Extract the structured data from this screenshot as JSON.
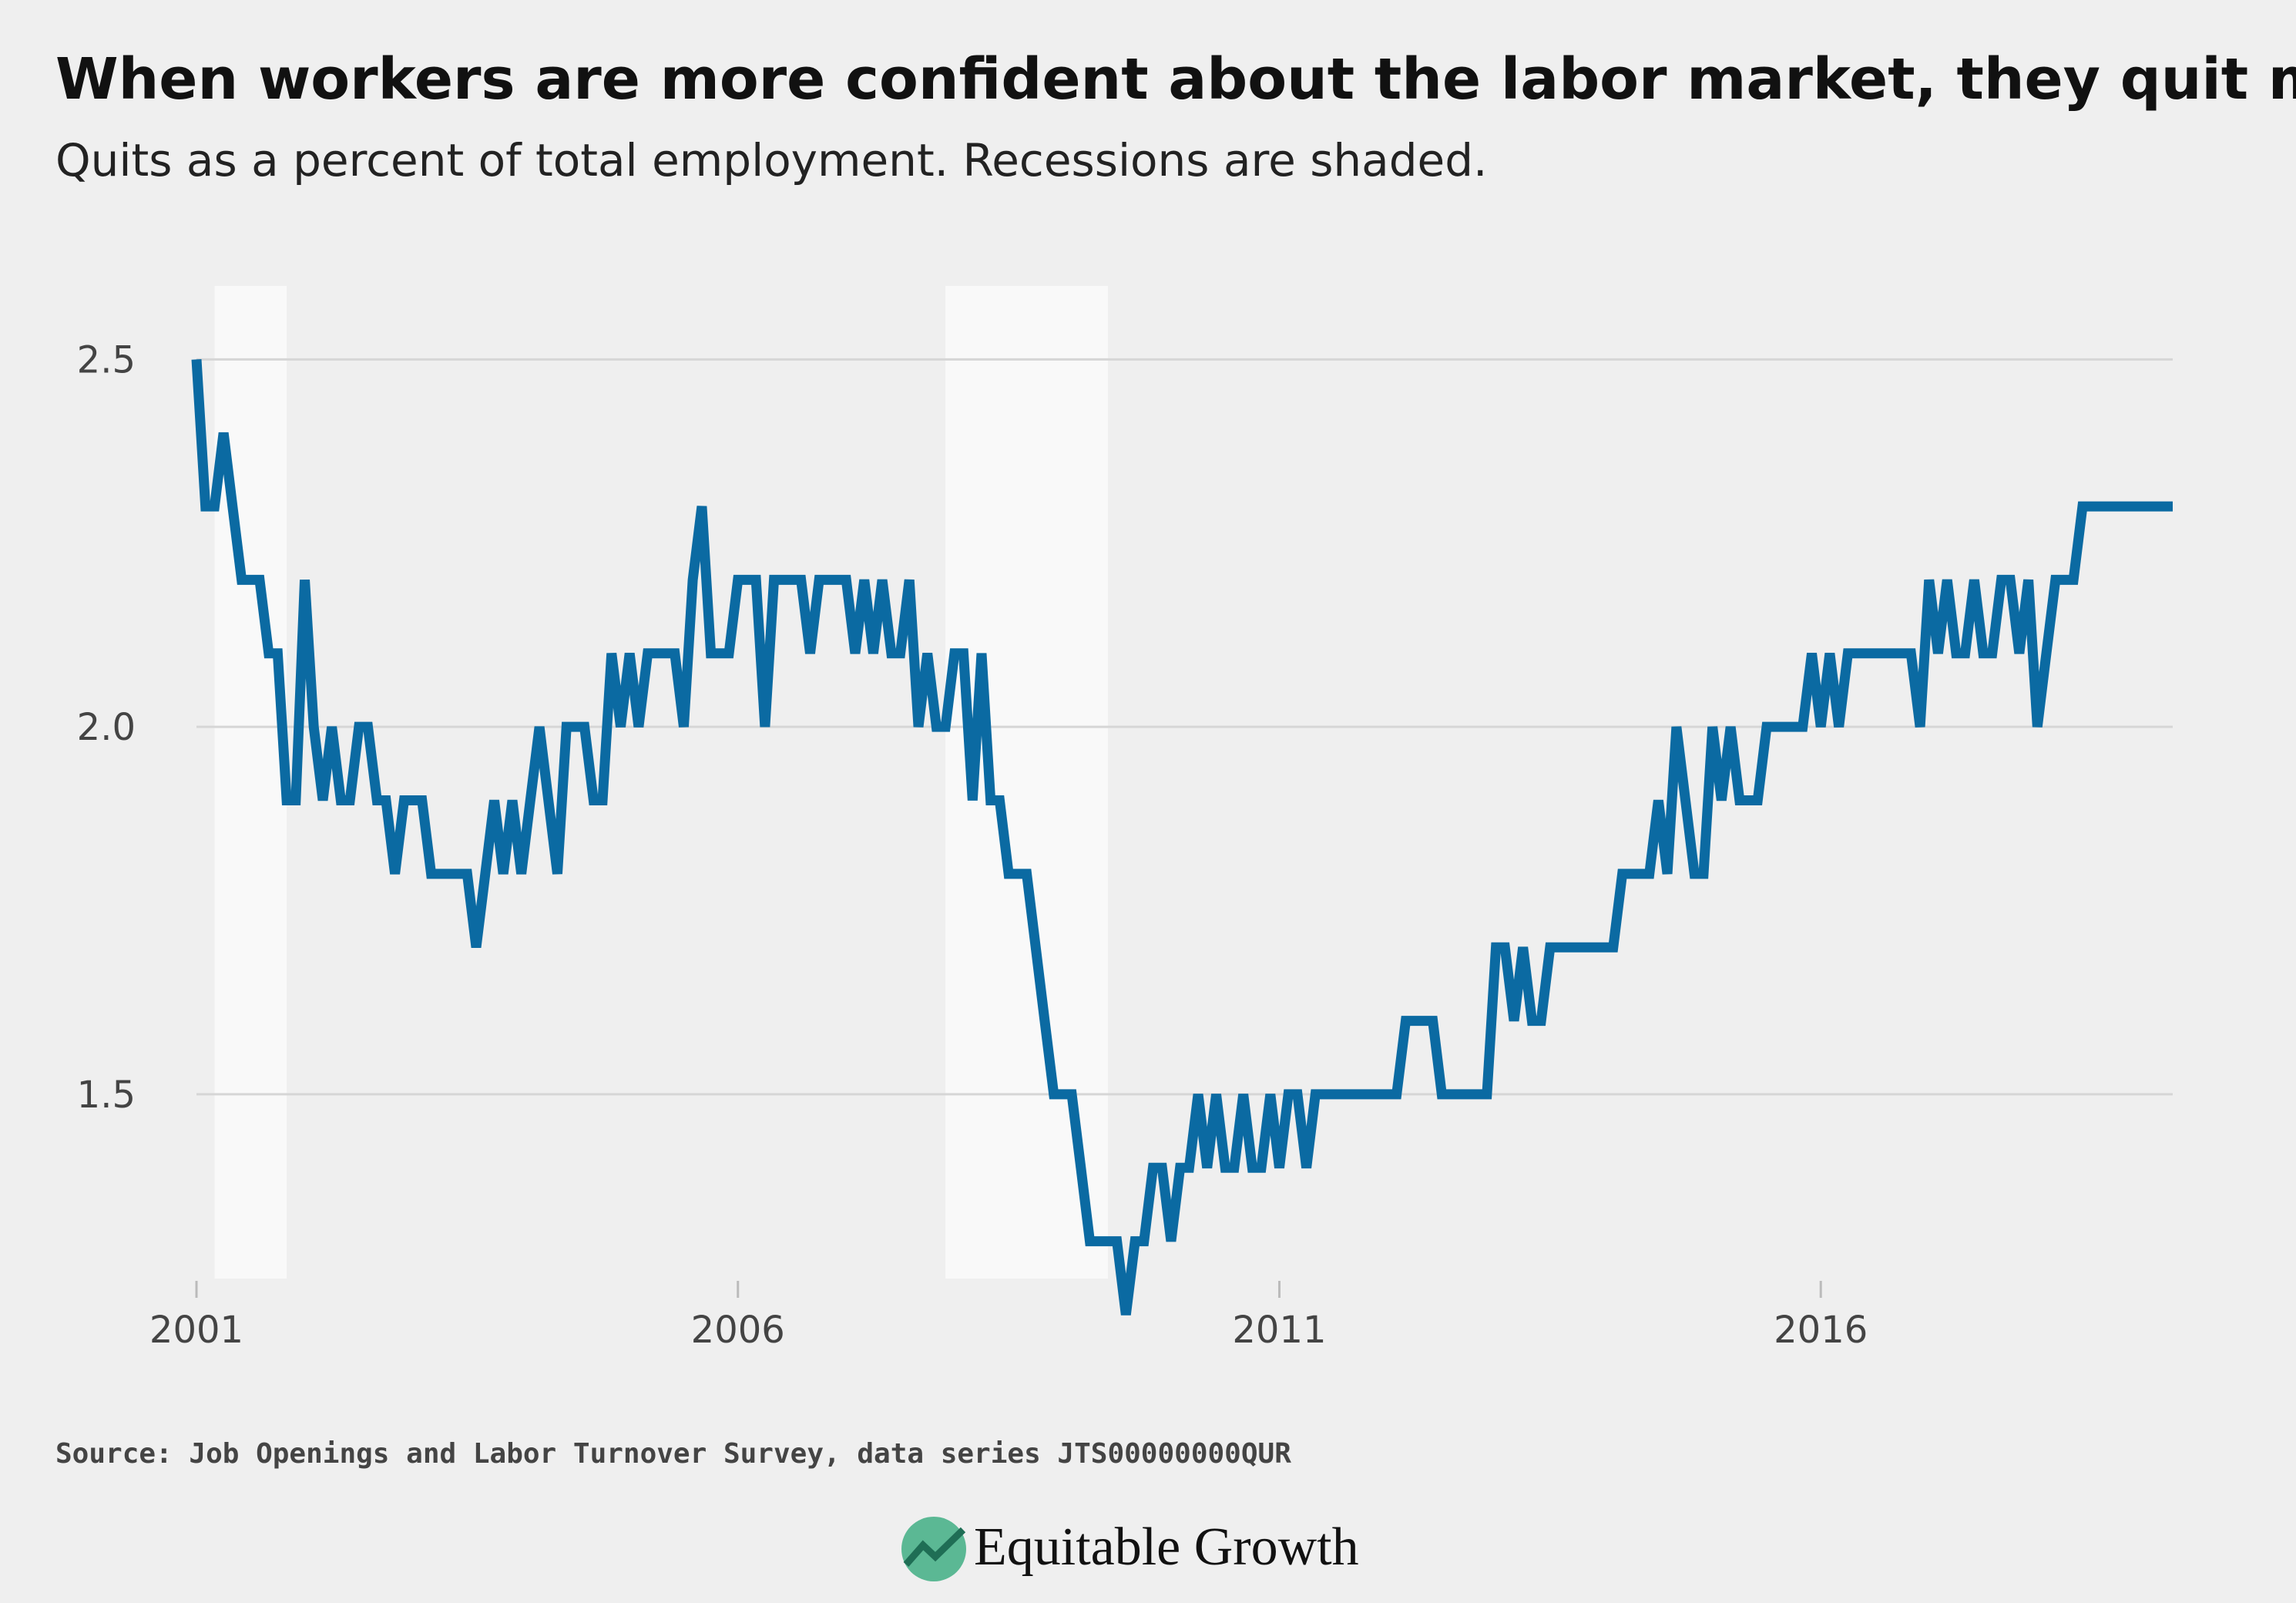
{
  "chart_data": {
    "type": "line",
    "title": "When workers are more confident about the labor market, they quit more",
    "subtitle": "Quits as a percent of total employment. Recessions are shaded.",
    "source": "Source: Job Openings and Labor Turnover Survey, data series JTS00000000QUR",
    "brand": "Equitable Growth",
    "color": "#0b6aa2",
    "grid": true,
    "xlim": [
      2001,
      2019.25
    ],
    "ylim": [
      1.2,
      2.6
    ],
    "xticks": [
      2001,
      2006,
      2011,
      2016
    ],
    "yticks": [
      1.5,
      {
        "value": 2.0,
        "label": "2.0"
      },
      2.5
    ],
    "recessions": [
      [
        2001.167,
        2001.833
      ],
      [
        2007.917,
        2009.417
      ]
    ],
    "x": [
      2001.0,
      2001.083,
      2001.167,
      2001.25,
      2001.333,
      2001.417,
      2001.5,
      2001.583,
      2001.667,
      2001.75,
      2001.833,
      2001.917,
      2002.0,
      2002.083,
      2002.167,
      2002.25,
      2002.333,
      2002.417,
      2002.5,
      2002.583,
      2002.667,
      2002.75,
      2002.833,
      2002.917,
      2003.0,
      2003.083,
      2003.167,
      2003.25,
      2003.333,
      2003.417,
      2003.5,
      2003.583,
      2003.667,
      2003.75,
      2003.833,
      2003.917,
      2004.0,
      2004.083,
      2004.167,
      2004.25,
      2004.333,
      2004.417,
      2004.5,
      2004.583,
      2004.667,
      2004.75,
      2004.833,
      2004.917,
      2005.0,
      2005.083,
      2005.167,
      2005.25,
      2005.333,
      2005.417,
      2005.5,
      2005.583,
      2005.667,
      2005.75,
      2005.833,
      2005.917,
      2006.0,
      2006.083,
      2006.167,
      2006.25,
      2006.333,
      2006.417,
      2006.5,
      2006.583,
      2006.667,
      2006.75,
      2006.833,
      2006.917,
      2007.0,
      2007.083,
      2007.167,
      2007.25,
      2007.333,
      2007.417,
      2007.5,
      2007.583,
      2007.667,
      2007.75,
      2007.833,
      2007.917,
      2008.0,
      2008.083,
      2008.167,
      2008.25,
      2008.333,
      2008.417,
      2008.5,
      2008.583,
      2008.667,
      2008.75,
      2008.833,
      2008.917,
      2009.0,
      2009.083,
      2009.167,
      2009.25,
      2009.333,
      2009.417,
      2009.5,
      2009.583,
      2009.667,
      2009.75,
      2009.833,
      2009.917,
      2010.0,
      2010.083,
      2010.167,
      2010.25,
      2010.333,
      2010.417,
      2010.5,
      2010.583,
      2010.667,
      2010.75,
      2010.833,
      2010.917,
      2011.0,
      2011.083,
      2011.167,
      2011.25,
      2011.333,
      2011.417,
      2011.5,
      2011.583,
      2011.667,
      2011.75,
      2011.833,
      2011.917,
      2012.0,
      2012.083,
      2012.167,
      2012.25,
      2012.333,
      2012.417,
      2012.5,
      2012.583,
      2012.667,
      2012.75,
      2012.833,
      2012.917,
      2013.0,
      2013.083,
      2013.167,
      2013.25,
      2013.333,
      2013.417,
      2013.5,
      2013.583,
      2013.667,
      2013.75,
      2013.833,
      2013.917,
      2014.0,
      2014.083,
      2014.167,
      2014.25,
      2014.333,
      2014.417,
      2014.5,
      2014.583,
      2014.667,
      2014.75,
      2014.833,
      2014.917,
      2015.0,
      2015.083,
      2015.167,
      2015.25,
      2015.333,
      2015.417,
      2015.5,
      2015.583,
      2015.667,
      2015.75,
      2015.833,
      2015.917,
      2016.0,
      2016.083,
      2016.167,
      2016.25,
      2016.333,
      2016.417,
      2016.5,
      2016.583,
      2016.667,
      2016.75,
      2016.833,
      2016.917,
      2017.0,
      2017.083,
      2017.167,
      2017.25,
      2017.333,
      2017.417,
      2017.5,
      2017.583,
      2017.667,
      2017.75,
      2017.833,
      2017.917,
      2018.0,
      2018.083,
      2018.167,
      2018.25,
      2018.333,
      2018.417,
      2018.5,
      2018.583,
      2018.667,
      2018.75,
      2018.833,
      2018.917,
      2019.0,
      2019.083,
      2019.167,
      2019.25
    ],
    "values": [
      2.5,
      2.3,
      2.3,
      2.4,
      2.3,
      2.2,
      2.2,
      2.2,
      2.1,
      2.1,
      1.9,
      1.9,
      2.2,
      2.0,
      1.9,
      2.0,
      1.9,
      1.9,
      2.0,
      2.0,
      1.9,
      1.9,
      1.8,
      1.9,
      1.9,
      1.9,
      1.8,
      1.8,
      1.8,
      1.8,
      1.8,
      1.7,
      1.8,
      1.9,
      1.8,
      1.9,
      1.8,
      1.9,
      2.0,
      1.9,
      1.8,
      2.0,
      2.0,
      2.0,
      1.9,
      1.9,
      2.1,
      2.0,
      2.1,
      2.0,
      2.1,
      2.1,
      2.1,
      2.1,
      2.0,
      2.2,
      2.3,
      2.1,
      2.1,
      2.1,
      2.2,
      2.2,
      2.2,
      2.0,
      2.2,
      2.2,
      2.2,
      2.2,
      2.1,
      2.2,
      2.2,
      2.2,
      2.2,
      2.1,
      2.2,
      2.1,
      2.2,
      2.1,
      2.1,
      2.2,
      2.0,
      2.1,
      2.0,
      2.0,
      2.1,
      2.1,
      1.9,
      2.1,
      1.9,
      1.9,
      1.8,
      1.8,
      1.8,
      1.7,
      1.6,
      1.5,
      1.5,
      1.5,
      1.4,
      1.3,
      1.3,
      1.3,
      1.3,
      1.2,
      1.3,
      1.3,
      1.4,
      1.4,
      1.3,
      1.4,
      1.4,
      1.5,
      1.4,
      1.5,
      1.4,
      1.4,
      1.5,
      1.4,
      1.4,
      1.5,
      1.4,
      1.5,
      1.5,
      1.4,
      1.5,
      1.5,
      1.5,
      1.5,
      1.5,
      1.5,
      1.5,
      1.5,
      1.5,
      1.5,
      1.6,
      1.6,
      1.6,
      1.6,
      1.5,
      1.5,
      1.5,
      1.5,
      1.5,
      1.5,
      1.7,
      1.7,
      1.6,
      1.7,
      1.6,
      1.6,
      1.7,
      1.7,
      1.7,
      1.7,
      1.7,
      1.7,
      1.7,
      1.7,
      1.8,
      1.8,
      1.8,
      1.8,
      1.9,
      1.8,
      2.0,
      1.9,
      1.8,
      1.8,
      2.0,
      1.9,
      2.0,
      1.9,
      1.9,
      1.9,
      2.0,
      2.0,
      2.0,
      2.0,
      2.0,
      2.1,
      2.0,
      2.1,
      2.0,
      2.1,
      2.1,
      2.1,
      2.1,
      2.1,
      2.1,
      2.1,
      2.1,
      2.0,
      2.2,
      2.1,
      2.2,
      2.1,
      2.1,
      2.2,
      2.1,
      2.1,
      2.2,
      2.2,
      2.1,
      2.2,
      2.0,
      2.1,
      2.2,
      2.2,
      2.2,
      2.3,
      2.3,
      2.3,
      2.3,
      2.3,
      2.3,
      2.3,
      2.3,
      2.3,
      2.3,
      2.3
    ]
  }
}
